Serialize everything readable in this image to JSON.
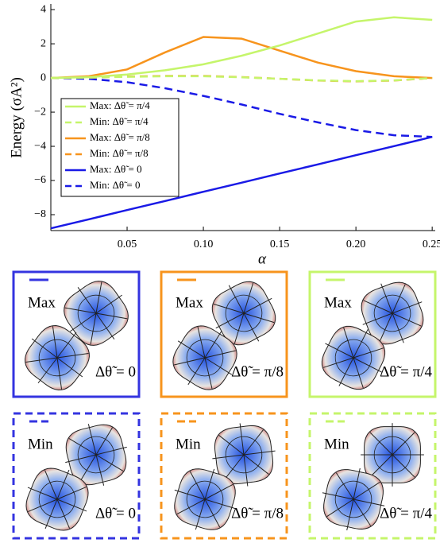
{
  "chart_data": {
    "type": "line",
    "x_label": "α",
    "y_label": "Energy (σA²)",
    "xlim": [
      0,
      0.252
    ],
    "ylim": [
      -8.93,
      4.33
    ],
    "xticks": [
      0.05,
      {
        "value": 0.1,
        "label": "0.10"
      },
      0.15,
      {
        "value": 0.2,
        "label": "0.20"
      },
      0.25
    ],
    "yticks": [
      {
        "value": -8,
        "label": "−8"
      },
      {
        "value": -6,
        "label": "−6"
      },
      {
        "value": -4,
        "label": "−4"
      },
      {
        "value": -2,
        "label": "−2"
      },
      0,
      2,
      4
    ],
    "x": [
      0,
      0.025,
      0.05,
      0.075,
      0.1,
      0.125,
      0.15,
      0.175,
      0.2,
      0.225,
      0.25
    ],
    "series": [
      {
        "name": "Max: Δθ̃ = π/4",
        "color": "#c5f56b",
        "style": "solid",
        "values": [
          0,
          0.05,
          0.2,
          0.45,
          0.8,
          1.3,
          1.9,
          2.6,
          3.3,
          3.55,
          3.4
        ]
      },
      {
        "name": "Min: Δθ̃ = π/4",
        "color": "#c5f56b",
        "style": "dashed",
        "values": [
          0,
          0.02,
          0.07,
          0.1,
          0.1,
          0.04,
          -0.05,
          -0.14,
          -0.19,
          -0.14,
          0
        ]
      },
      {
        "name": "Max: Δθ̃ = π/8",
        "color": "#f7941d",
        "style": "solid",
        "values": [
          0,
          0.1,
          0.5,
          1.5,
          2.4,
          2.3,
          1.6,
          0.9,
          0.4,
          0.1,
          0
        ]
      },
      {
        "name": "Min: Δθ̃ = π/8",
        "color": "#f7941d",
        "style": "dashed",
        "values": [
          0,
          0.02,
          0.08,
          0.12,
          0.12,
          0.05,
          -0.05,
          -0.15,
          -0.2,
          -0.15,
          0
        ]
      },
      {
        "name": "Max: Δθ̃ = 0",
        "color": "#1a1ae6",
        "style": "solid",
        "values": [
          -8.8,
          -8.27,
          -7.73,
          -7.2,
          -6.66,
          -6.13,
          -5.59,
          -5.06,
          -4.52,
          -3.99,
          -3.45
        ]
      },
      {
        "name": "Min: Δθ̃ = 0",
        "color": "#1a1ae6",
        "style": "dashed",
        "values": [
          0,
          -0.05,
          -0.25,
          -0.6,
          -1.05,
          -1.55,
          -2.1,
          -2.6,
          -3.05,
          -3.35,
          -3.45
        ]
      }
    ]
  },
  "panels": [
    {
      "label": "Max",
      "delta": "Δθ̃ = 0",
      "color": "#3434e0",
      "style": "solid"
    },
    {
      "label": "Max",
      "delta": "Δθ̃ = π/8",
      "color": "#f7941d",
      "style": "solid"
    },
    {
      "label": "Max",
      "delta": "Δθ̃ = π/4",
      "color": "#c5f56b",
      "style": "solid"
    },
    {
      "label": "Min",
      "delta": "Δθ̃ = 0",
      "color": "#3434e0",
      "style": "dashed"
    },
    {
      "label": "Min",
      "delta": "Δθ̃ = π/8",
      "color": "#f7941d",
      "style": "dashed"
    },
    {
      "label": "Min",
      "delta": "Δθ̃ = π/4",
      "color": "#c5f56b",
      "style": "dashed"
    }
  ]
}
